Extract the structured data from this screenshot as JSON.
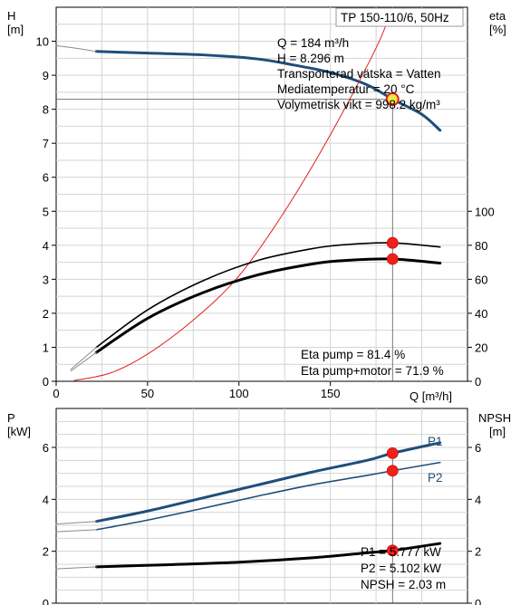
{
  "chart_data": [
    {
      "type": "line",
      "title": "TP 150-110/6, 50Hz",
      "xlabel": "Q [m³/h]",
      "ylabel": "H\n[m]",
      "ylabel_left_name": "H",
      "ylabel_left_unit": "[m]",
      "ylabel_right_name": "eta",
      "ylabel_right_unit": "[%]",
      "x_ticks": [
        "0",
        "50",
        "100",
        "150"
      ],
      "y_left_ticks": [
        "0",
        "1",
        "2",
        "3",
        "4",
        "5",
        "6",
        "7",
        "8",
        "9",
        "10"
      ],
      "y_right_ticks": [
        "0",
        "20",
        "40",
        "60",
        "80",
        "100"
      ],
      "xlim": [
        0,
        225
      ],
      "ylim_left": [
        0,
        11
      ],
      "ylim_right": [
        0,
        220
      ],
      "grid": true,
      "series": [
        {
          "axis": "left",
          "color": "#1f4e79",
          "width": 3,
          "x": [
            22,
            50,
            80,
            110,
            130,
            150,
            170,
            184,
            200,
            210
          ],
          "y": [
            9.7,
            9.65,
            9.6,
            9.48,
            9.3,
            9.08,
            8.72,
            8.296,
            7.85,
            7.38
          ]
        },
        {
          "axis": "left",
          "color": "#8c8c8c",
          "width": 1,
          "x": [
            0,
            10,
            22
          ],
          "y": [
            9.87,
            9.8,
            9.7
          ]
        },
        {
          "axis": "right",
          "color": "#e0201c",
          "width": 1,
          "x": [
            10,
            30,
            50,
            75,
            100,
            125,
            150,
            175,
            184
          ],
          "y": [
            0.5,
            5,
            16,
            36,
            62,
            100,
            145,
            196,
            220
          ]
        },
        {
          "axis": "right",
          "color": "#000000",
          "width": 1.6,
          "x": [
            22,
            50,
            80,
            110,
            140,
            160,
            184,
            210
          ],
          "y": [
            20,
            42,
            59,
            71,
            78,
            80.5,
            81.4,
            79
          ]
        },
        {
          "axis": "right",
          "color": "#000000",
          "width": 3,
          "x": [
            22,
            50,
            80,
            110,
            140,
            160,
            184,
            210
          ],
          "y": [
            17,
            37,
            52,
            62.5,
            69,
            71.2,
            71.9,
            69.5
          ]
        },
        {
          "axis": "right",
          "color": "#8c8c8c",
          "width": 1,
          "x": [
            8,
            22
          ],
          "y": [
            7,
            20
          ]
        },
        {
          "axis": "right",
          "color": "#8c8c8c",
          "width": 1,
          "x": [
            8,
            22
          ],
          "y": [
            6,
            17
          ]
        }
      ],
      "operating_point": {
        "x": 184,
        "H": 8.296,
        "eta_pump": 81.4,
        "eta_total": 71.9
      },
      "annotations": {
        "q": "Q = 184 m³/h",
        "h": "H = 8.296 m",
        "liquid": "Transporterad vätska = Vatten",
        "temp": "Mediatemperatur = 20 °C",
        "density": "Volymetrisk vikt = 998.2 kg/m³",
        "eta_pump": "Eta pump = 81.4 %",
        "eta_total": "Eta pump+motor = 71.9 %"
      }
    },
    {
      "type": "line",
      "ylabel_left_name": "P",
      "ylabel_left_unit": "[kW]",
      "ylabel_right_name": "NPSH",
      "ylabel_right_unit": "[m]",
      "y_left_ticks": [
        "0",
        "2",
        "4",
        "6"
      ],
      "y_right_ticks": [
        "0",
        "2",
        "4",
        "6"
      ],
      "xlim": [
        0,
        225
      ],
      "ylim": [
        0,
        7.5
      ],
      "grid": true,
      "series": [
        {
          "name": "P1",
          "color": "#1f4e79",
          "width": 3,
          "x": [
            22,
            50,
            80,
            110,
            140,
            170,
            184,
            210
          ],
          "y": [
            3.15,
            3.55,
            4.05,
            4.55,
            5.05,
            5.5,
            5.777,
            6.18
          ]
        },
        {
          "name": "P2",
          "color": "#1f4e79",
          "width": 1.6,
          "x": [
            22,
            50,
            80,
            110,
            140,
            170,
            184,
            210
          ],
          "y": [
            2.83,
            3.2,
            3.65,
            4.12,
            4.56,
            4.92,
            5.102,
            5.42
          ]
        },
        {
          "name": "NPSH",
          "color": "#000000",
          "width": 3,
          "x": [
            22,
            60,
            100,
            140,
            170,
            184,
            210
          ],
          "y": [
            1.4,
            1.48,
            1.58,
            1.75,
            1.94,
            2.03,
            2.3
          ]
        },
        {
          "color": "#8c8c8c",
          "width": 1,
          "x": [
            0,
            22
          ],
          "y": [
            3.05,
            3.15
          ]
        },
        {
          "color": "#8c8c8c",
          "width": 1,
          "x": [
            0,
            22
          ],
          "y": [
            2.75,
            2.83
          ]
        },
        {
          "color": "#8c8c8c",
          "width": 1,
          "x": [
            0,
            22
          ],
          "y": [
            1.32,
            1.4
          ]
        }
      ],
      "operating_point": {
        "x": 184,
        "P1": 5.777,
        "P2": 5.102,
        "NPSH": 2.03
      },
      "annotations": {
        "p1": "P1 = 5.777 kW",
        "p2": "P2 = 5.102 kW",
        "npsh": "NPSH = 2.03 m"
      }
    }
  ]
}
